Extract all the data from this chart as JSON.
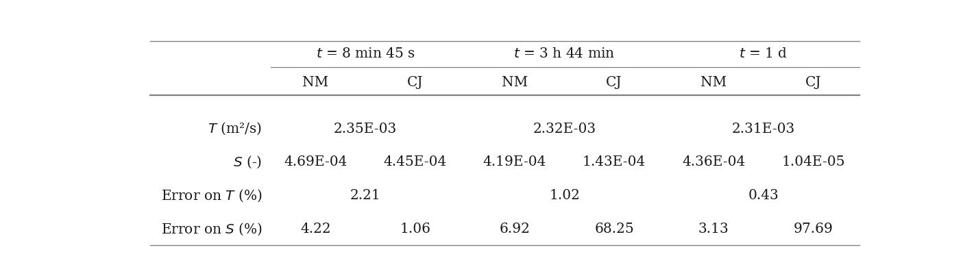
{
  "col_groups": [
    "$t$ = 8 min 45 s",
    "$t$ = 3 h 44 min",
    "$t$ = 1 d"
  ],
  "sub_cols": [
    "NM",
    "CJ",
    "NM",
    "CJ",
    "NM",
    "CJ"
  ],
  "row_labels": [
    "$T$ (m²/s)",
    "$S$ (-)",
    "Error on $T$ (%)",
    "Error on $S$ (%)"
  ],
  "T_row": [
    "2.35E-03",
    "",
    "2.32E-03",
    "",
    "2.31E-03",
    ""
  ],
  "S_row": [
    "4.69E-04",
    "4.45E-04",
    "4.19E-04",
    "1.43E-04",
    "4.36E-04",
    "1.04E-05"
  ],
  "ErrT_row": [
    "2.21",
    "",
    "1.02",
    "",
    "0.43",
    ""
  ],
  "ErrS_row": [
    "4.22",
    "1.06",
    "6.92",
    "68.25",
    "3.13",
    "97.69"
  ],
  "merged_rows": [
    0,
    2
  ],
  "bg_color": "#ffffff",
  "text_color": "#1a1a1a",
  "line_color": "#808080",
  "font_size": 14.5
}
